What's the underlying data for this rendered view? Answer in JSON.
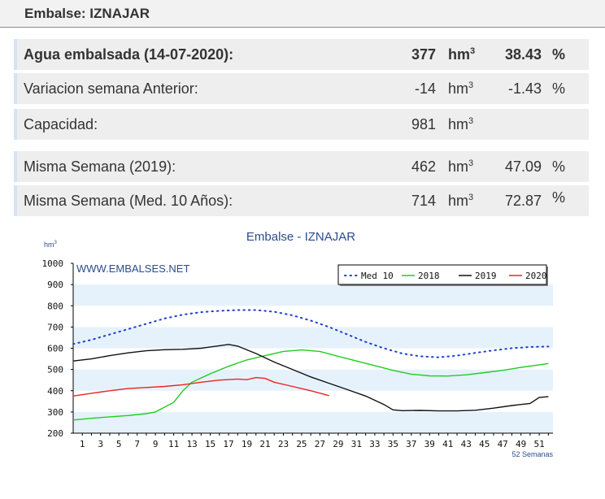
{
  "header": {
    "title": "Embalse: IZNAJAR"
  },
  "rows": [
    {
      "label": "Agua embalsada (14-07-2020):",
      "value": "377",
      "unit": "hm",
      "unit_sup": "3",
      "pct": "38.43",
      "pct_sign": "%"
    },
    {
      "label": "Variacion semana Anterior:",
      "value": "-14",
      "unit": "hm",
      "unit_sup": "3",
      "pct": "-1.43",
      "pct_sign": "%"
    },
    {
      "label": "Capacidad:",
      "value": "981",
      "unit": "hm",
      "unit_sup": "3",
      "pct": "",
      "pct_sign": ""
    },
    {
      "label": "Misma Semana (2019):",
      "value": "462",
      "unit": "hm",
      "unit_sup": "3",
      "pct": "47.09",
      "pct_sign": "%"
    },
    {
      "label": "Misma Semana (Med. 10 Años):",
      "value": "714",
      "unit": "hm",
      "unit_sup": "3",
      "pct": "72.87",
      "pct_sign": "%"
    }
  ],
  "chart_data": {
    "type": "line",
    "title": "Embalse - IZNAJAR",
    "ylabel": "hm",
    "ylabel_sup": "3",
    "xlabel": "52 Semanas",
    "watermark": "WWW.EMBALSES.NET",
    "ylim": [
      200,
      1000
    ],
    "yticks": [
      200,
      300,
      400,
      500,
      600,
      700,
      800,
      900,
      1000
    ],
    "xlim": [
      0,
      52.5
    ],
    "xticks": [
      1,
      3,
      5,
      7,
      9,
      11,
      13,
      15,
      17,
      19,
      21,
      23,
      25,
      27,
      29,
      31,
      33,
      35,
      37,
      39,
      41,
      43,
      45,
      47,
      49,
      51
    ],
    "legend_position": "top-right",
    "colors": {
      "band_light": "#e6f2fb",
      "band_white": "#ffffff"
    },
    "series": [
      {
        "name": "Med 10",
        "color": "#1f3fd0",
        "style": "dotted",
        "x": [
          0,
          2,
          4,
          6,
          8,
          10,
          12,
          14,
          16,
          18,
          20,
          22,
          24,
          26,
          28,
          30,
          32,
          34,
          36,
          38,
          40,
          42,
          44,
          46,
          48,
          50,
          52
        ],
        "values": [
          620,
          640,
          665,
          690,
          715,
          740,
          758,
          770,
          776,
          780,
          780,
          772,
          755,
          730,
          700,
          665,
          630,
          600,
          575,
          562,
          557,
          565,
          578,
          590,
          600,
          606,
          608
        ]
      },
      {
        "name": "2018",
        "color": "#22cc22",
        "style": "solid",
        "x": [
          0,
          2,
          4,
          6,
          8,
          9,
          11,
          12,
          13,
          15,
          17,
          19,
          21,
          23,
          25,
          27,
          29,
          31,
          33,
          35,
          37,
          39,
          41,
          43,
          45,
          47,
          49,
          51,
          52
        ],
        "values": [
          262,
          270,
          277,
          283,
          292,
          300,
          345,
          400,
          440,
          480,
          515,
          545,
          565,
          585,
          592,
          585,
          562,
          540,
          518,
          496,
          478,
          470,
          469,
          475,
          485,
          496,
          510,
          522,
          528
        ]
      },
      {
        "name": "2019",
        "color": "#111111",
        "style": "solid",
        "x": [
          0,
          2,
          4,
          6,
          8,
          10,
          12,
          14,
          16,
          17,
          18,
          20,
          22,
          24,
          26,
          28,
          30,
          32,
          34,
          35,
          36,
          38,
          40,
          42,
          44,
          46,
          48,
          50,
          51,
          52
        ],
        "values": [
          540,
          550,
          565,
          578,
          588,
          593,
          595,
          600,
          612,
          618,
          610,
          575,
          535,
          500,
          465,
          435,
          405,
          375,
          335,
          310,
          306,
          307,
          305,
          305,
          308,
          318,
          330,
          340,
          368,
          372
        ]
      },
      {
        "name": "2020",
        "color": "#ee2222",
        "style": "solid",
        "x": [
          0,
          2,
          4,
          6,
          8,
          10,
          12,
          14,
          16,
          18,
          19,
          20,
          21,
          22,
          24,
          26,
          28
        ],
        "values": [
          375,
          388,
          400,
          410,
          415,
          420,
          428,
          440,
          450,
          455,
          452,
          462,
          458,
          440,
          420,
          400,
          377
        ]
      }
    ]
  }
}
